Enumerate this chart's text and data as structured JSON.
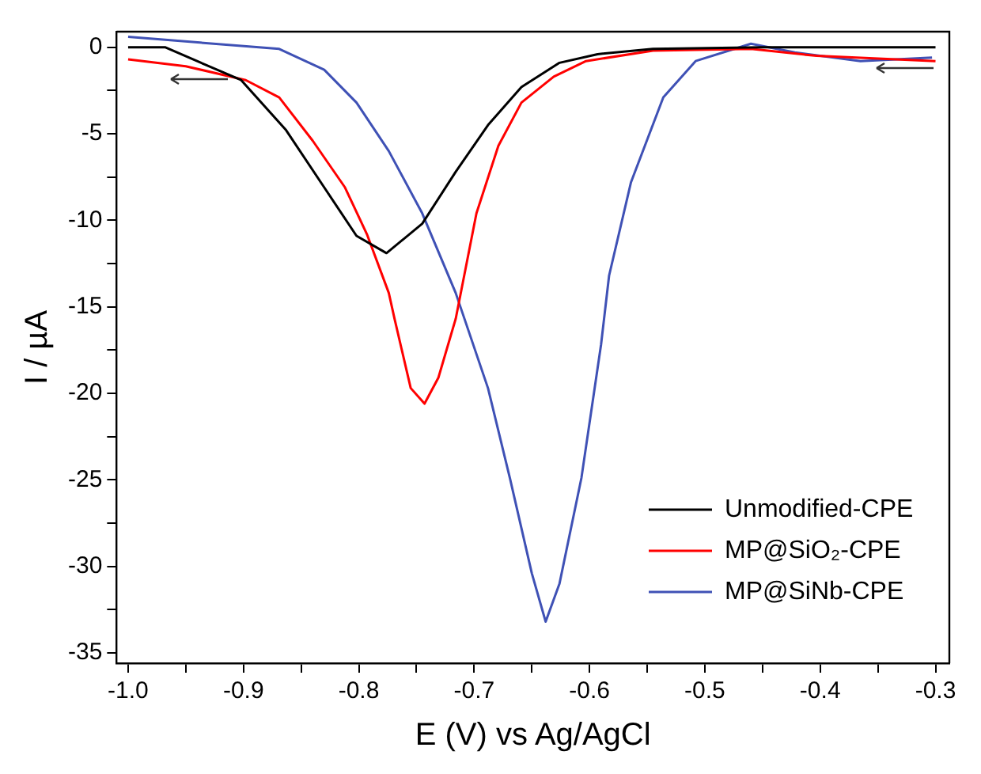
{
  "chart_data": {
    "type": "line",
    "xlabel": "E (V) vs Ag/AgCl",
    "ylabel": "I / µA",
    "xlim": [
      -1.01,
      -0.288
    ],
    "ylim": [
      -35.6,
      0.9
    ],
    "xticks": [
      {
        "value": -1,
        "label": "-1.0"
      },
      {
        "value": -0.95,
        "label": null
      },
      -0.9,
      {
        "value": -0.85,
        "label": null
      },
      -0.8,
      {
        "value": -0.75,
        "label": null
      },
      -0.7,
      {
        "value": -0.65,
        "label": null
      },
      -0.6,
      {
        "value": -0.55,
        "label": null
      },
      -0.5,
      {
        "value": -0.45,
        "label": null
      },
      -0.4,
      {
        "value": -0.35,
        "label": null
      },
      -0.3
    ],
    "yticks": [
      -35,
      {
        "value": -32.5,
        "label": null
      },
      -30,
      {
        "value": -27.5,
        "label": null
      },
      -25,
      {
        "value": -22.5,
        "label": null
      },
      -20,
      {
        "value": -17.5,
        "label": null
      },
      -15,
      {
        "value": -12.5,
        "label": null
      },
      -10,
      {
        "value": -7.5,
        "label": null
      },
      -5,
      {
        "value": -2.5,
        "label": null
      },
      0
    ],
    "grid": false,
    "legend": "bottom right",
    "marker": "none",
    "line_style": "solid",
    "series": [
      {
        "name": "Unmodified-CPE",
        "color": "#000000",
        "x": [
          -1.0,
          -0.968,
          -0.902,
          -0.863,
          -0.83,
          -0.802,
          -0.776,
          -0.745,
          -0.716,
          -0.688,
          -0.659,
          -0.626,
          -0.593,
          -0.545,
          -0.45,
          -0.3
        ],
        "values": [
          0,
          0,
          -1.9,
          -4.8,
          -8.1,
          -10.9,
          -11.9,
          -10.2,
          -7.2,
          -4.5,
          -2.3,
          -0.9,
          -0.4,
          -0.1,
          0,
          0
        ]
      },
      {
        "name": "MP@SiO₂-CPE",
        "color": "#ff0000",
        "x": [
          -1.0,
          -0.95,
          -0.898,
          -0.869,
          -0.84,
          -0.812,
          -0.793,
          -0.774,
          -0.769,
          -0.755,
          -0.743,
          -0.731,
          -0.716,
          -0.698,
          -0.679,
          -0.659,
          -0.631,
          -0.603,
          -0.545,
          -0.46,
          -0.403,
          -0.3
        ],
        "values": [
          -0.7,
          -1.1,
          -1.9,
          -2.9,
          -5.4,
          -8.1,
          -10.8,
          -14.2,
          -15.7,
          -19.7,
          -20.6,
          -19.1,
          -15.7,
          -9.6,
          -5.7,
          -3.2,
          -1.7,
          -0.8,
          -0.2,
          -0.1,
          -0.5,
          -0.8
        ]
      },
      {
        "name": "MP@SiNb-CPE",
        "color": "#3f51b5",
        "x": [
          -1.0,
          -0.869,
          -0.83,
          -0.802,
          -0.774,
          -0.745,
          -0.716,
          -0.688,
          -0.669,
          -0.65,
          -0.638,
          -0.626,
          -0.607,
          -0.59,
          -0.583,
          -0.564,
          -0.536,
          -0.508,
          -0.46,
          -0.422,
          -0.365,
          -0.303
        ],
        "values": [
          0.6,
          -0.1,
          -1.3,
          -3.2,
          -6,
          -9.6,
          -14.2,
          -19.7,
          -24.9,
          -30.4,
          -33.2,
          -31,
          -24.9,
          -17.2,
          -13.2,
          -7.8,
          -2.9,
          -0.8,
          0.2,
          -0.3,
          -0.8,
          -0.6
        ]
      }
    ]
  }
}
